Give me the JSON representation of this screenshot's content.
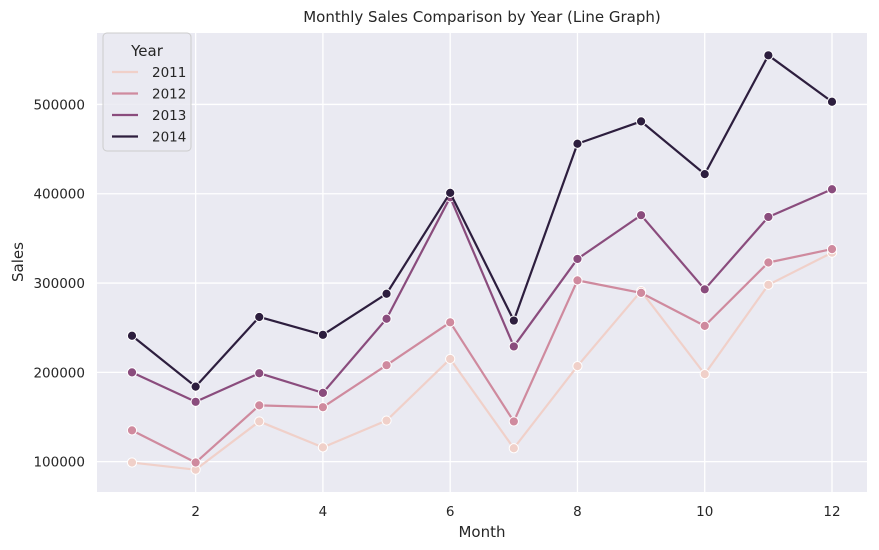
{
  "chart_data": {
    "type": "line",
    "title": "Monthly Sales Comparison by Year (Line Graph)",
    "xlabel": "Month",
    "ylabel": "Sales",
    "x": [
      1,
      2,
      3,
      4,
      5,
      6,
      7,
      8,
      9,
      10,
      11,
      12
    ],
    "xticks": [
      2,
      4,
      6,
      8,
      10,
      12
    ],
    "yticks": [
      100000,
      200000,
      300000,
      400000,
      500000
    ],
    "xlim": [
      0.45,
      12.55
    ],
    "ylim": [
      66000,
      580000
    ],
    "grid": true,
    "legend": {
      "title": "Year",
      "placement": "top-left"
    },
    "background": "#eaeaf2",
    "grid_color": "#ffffff",
    "series": [
      {
        "name": "2011",
        "color": "#f0d0c9",
        "values": [
          99000,
          91000,
          145000,
          116000,
          146000,
          215000,
          115000,
          207000,
          291000,
          198000,
          298000,
          334000
        ]
      },
      {
        "name": "2012",
        "color": "#cf8a9e",
        "values": [
          135000,
          99000,
          163000,
          161000,
          208000,
          256000,
          145000,
          303000,
          289000,
          252000,
          323000,
          338000
        ]
      },
      {
        "name": "2013",
        "color": "#8a4c7d",
        "values": [
          200000,
          167000,
          199000,
          177000,
          260000,
          396000,
          229000,
          327000,
          376000,
          293000,
          374000,
          405000
        ]
      },
      {
        "name": "2014",
        "color": "#2d1e3e",
        "values": [
          241000,
          184000,
          262000,
          242000,
          288000,
          401000,
          258000,
          456000,
          481000,
          422000,
          555000,
          503000
        ]
      }
    ]
  }
}
